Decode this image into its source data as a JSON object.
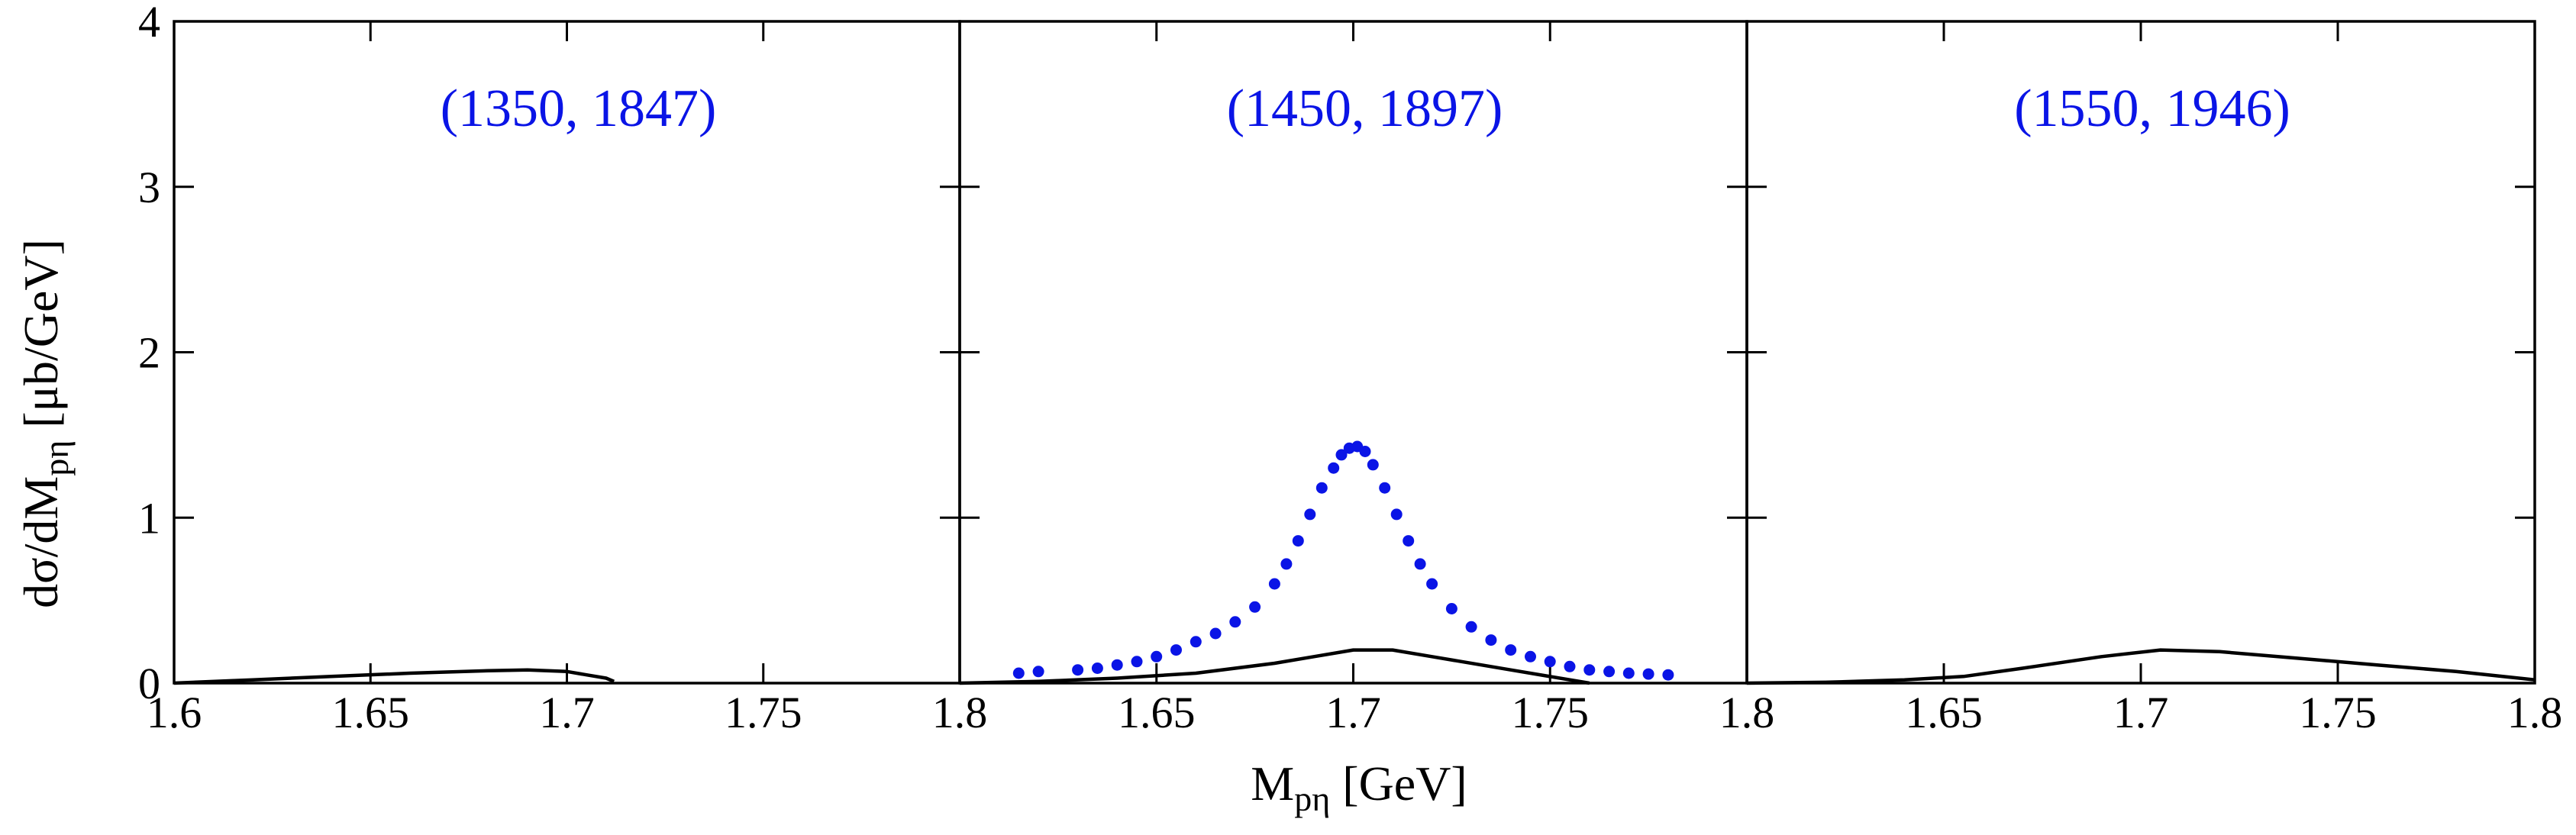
{
  "axis": {
    "ylabel_main": "dσ/dM",
    "ylabel_sub": "pη",
    "ylabel_unit": " [μb/GeV]",
    "xlabel_main": "M",
    "xlabel_sub": "pη",
    "xlabel_unit": " [GeV]",
    "y_tick_labels": [
      "0",
      "1",
      "2",
      "3",
      "4"
    ],
    "x_tick_labels": [
      [
        "1.6",
        "1.65",
        "1.7",
        "1.75"
      ],
      [
        "1.8",
        "1.65",
        "1.7",
        "1.75"
      ],
      [
        "1.8",
        "1.65",
        "1.7",
        "1.75",
        "1.8"
      ]
    ]
  },
  "colors": {
    "curve": "#000000",
    "points": "#0a14e6",
    "title": "#0a14e6"
  },
  "chart_data": [
    {
      "type": "line",
      "title": "(1350, 1847)",
      "xlim": [
        1.6,
        1.8
      ],
      "ylim": [
        0,
        4
      ],
      "series": [
        {
          "kind": "line",
          "x": [
            1.6,
            1.62,
            1.64,
            1.66,
            1.68,
            1.69,
            1.7,
            1.705,
            1.71,
            1.712
          ],
          "y": [
            0.0,
            0.02,
            0.04,
            0.06,
            0.075,
            0.08,
            0.07,
            0.05,
            0.03,
            0.01
          ]
        }
      ]
    },
    {
      "type": "line",
      "title": "(1450, 1897)",
      "xlim": [
        1.6,
        1.8
      ],
      "ylim": [
        0,
        4
      ],
      "series": [
        {
          "kind": "line",
          "x": [
            1.6,
            1.62,
            1.64,
            1.66,
            1.68,
            1.69,
            1.7,
            1.71,
            1.72,
            1.74,
            1.76
          ],
          "y": [
            0.0,
            0.01,
            0.03,
            0.06,
            0.12,
            0.16,
            0.2,
            0.2,
            0.16,
            0.08,
            0.0
          ]
        },
        {
          "kind": "scatter",
          "x": [
            1.615,
            1.62,
            1.63,
            1.635,
            1.64,
            1.645,
            1.65,
            1.655,
            1.66,
            1.665,
            1.67,
            1.675,
            1.68,
            1.683,
            1.686,
            1.689,
            1.692,
            1.695,
            1.697,
            1.699,
            1.701,
            1.703,
            1.705,
            1.708,
            1.711,
            1.714,
            1.717,
            1.72,
            1.725,
            1.73,
            1.735,
            1.74,
            1.745,
            1.75,
            1.755,
            1.76,
            1.765,
            1.77,
            1.775,
            1.78
          ],
          "y": [
            0.06,
            0.07,
            0.08,
            0.09,
            0.11,
            0.13,
            0.16,
            0.2,
            0.25,
            0.3,
            0.37,
            0.46,
            0.6,
            0.72,
            0.86,
            1.02,
            1.18,
            1.3,
            1.38,
            1.42,
            1.43,
            1.4,
            1.32,
            1.18,
            1.02,
            0.86,
            0.72,
            0.6,
            0.45,
            0.34,
            0.26,
            0.2,
            0.16,
            0.13,
            0.1,
            0.08,
            0.07,
            0.06,
            0.055,
            0.05
          ]
        }
      ]
    },
    {
      "type": "line",
      "title": "(1550, 1946)",
      "xlim": [
        1.6,
        1.8
      ],
      "ylim": [
        0,
        4
      ],
      "series": [
        {
          "kind": "line",
          "x": [
            1.6,
            1.62,
            1.64,
            1.655,
            1.67,
            1.69,
            1.705,
            1.72,
            1.74,
            1.76,
            1.78,
            1.8
          ],
          "y": [
            0.0,
            0.005,
            0.02,
            0.04,
            0.09,
            0.16,
            0.2,
            0.19,
            0.15,
            0.11,
            0.07,
            0.02
          ]
        }
      ]
    }
  ]
}
